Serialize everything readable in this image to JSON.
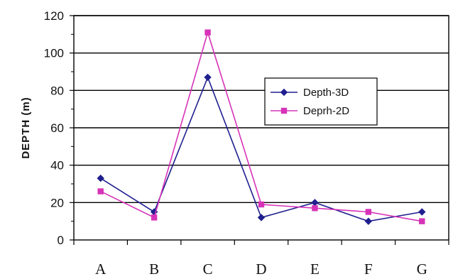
{
  "chart_data": {
    "type": "line",
    "title": "",
    "xlabel": "",
    "ylabel": "DEPTH  (m)",
    "categories": [
      "A",
      "B",
      "C",
      "D",
      "E",
      "F",
      "G"
    ],
    "ylim": [
      0,
      120
    ],
    "yticks": [
      0,
      20,
      40,
      60,
      80,
      100,
      120
    ],
    "grid": "horizontal",
    "legend_position": "center-right",
    "series": [
      {
        "name": "Depth-3D",
        "color": "#1f1f8f",
        "marker": "diamond",
        "values": [
          33,
          15,
          87,
          12,
          20,
          10,
          15
        ]
      },
      {
        "name": "Deprh-2D",
        "color": "#d633b8",
        "marker": "square",
        "values": [
          26,
          12,
          111,
          19,
          17,
          15,
          10
        ]
      }
    ]
  }
}
